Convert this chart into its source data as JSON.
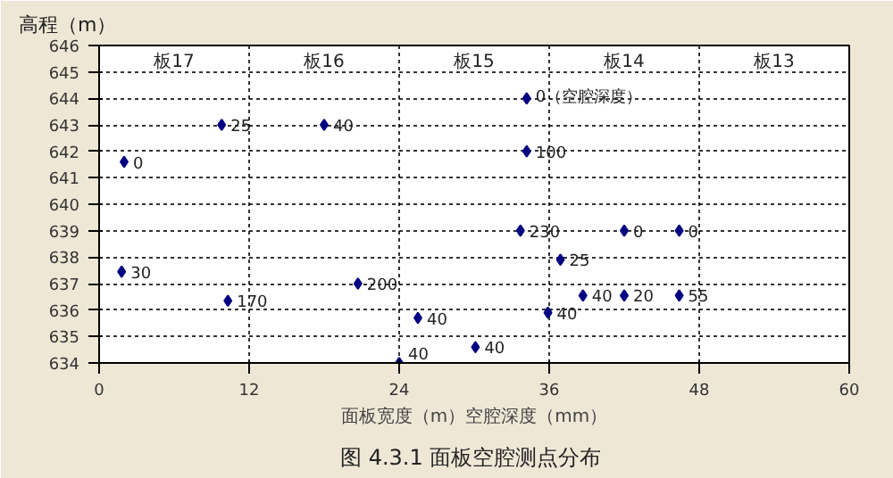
{
  "chart_data": {
    "type": "scatter",
    "title": "图 4.3.1  面板空腔测点分布",
    "xlabel": "面板宽度（m）空腔深度（mm）",
    "ylabel": "高程（m）",
    "x": [
      2.0,
      9.8,
      18.0,
      1.8,
      10.3,
      20.7,
      25.5,
      24.0,
      34.2,
      34.2,
      33.7,
      42.0,
      46.4,
      36.9,
      38.7,
      42.0,
      46.4,
      35.9,
      30.1
    ],
    "values": [
      641.6,
      643,
      643,
      637.45,
      636.35,
      637,
      635.7,
      634,
      644,
      642,
      639,
      639,
      639,
      637.9,
      636.55,
      636.55,
      636.55,
      635.9,
      634.6
    ],
    "color": "#000080",
    "marker": "diamond",
    "xlim": [
      0,
      60
    ],
    "ylim": [
      634,
      646
    ],
    "xticks": [
      0,
      12,
      24,
      36,
      48,
      60
    ],
    "yticks": [
      634,
      635,
      636,
      637,
      638,
      639,
      640,
      641,
      642,
      643,
      644,
      645,
      646
    ],
    "grid": true,
    "annotations": [
      "板17",
      "板16",
      "板15",
      "板14",
      "板13",
      {
        "text": "0",
        "x": 2.0,
        "y": 641.6
      },
      {
        "text": "25",
        "x": 9.8,
        "y": 643
      },
      {
        "text": "40",
        "x": 18.0,
        "y": 643
      },
      {
        "text": "30",
        "x": 1.8,
        "y": 637.45
      },
      {
        "text": "170",
        "x": 10.3,
        "y": 636.35
      },
      {
        "text": "200",
        "x": 20.7,
        "y": 637
      },
      {
        "text": "40",
        "x": 25.5,
        "y": 635.7
      },
      {
        "text": "40",
        "x": 24.0,
        "y": 634
      },
      {
        "text": "0（空腔深度）",
        "x": 34.2,
        "y": 644
      },
      {
        "text": "100",
        "x": 34.2,
        "y": 642
      },
      {
        "text": "230",
        "x": 33.7,
        "y": 639
      },
      {
        "text": "0",
        "x": 42.0,
        "y": 639
      },
      {
        "text": "0",
        "x": 46.4,
        "y": 639
      },
      {
        "text": "25",
        "x": 36.9,
        "y": 637.9
      },
      {
        "text": "40",
        "x": 38.7,
        "y": 636.55
      },
      {
        "text": "20",
        "x": 42.0,
        "y": 636.55
      },
      {
        "text": "55",
        "x": 46.4,
        "y": 636.55
      },
      {
        "text": "40",
        "x": 35.9,
        "y": 635.9
      },
      {
        "text": "40",
        "x": 30.1,
        "y": 634.6
      }
    ]
  }
}
